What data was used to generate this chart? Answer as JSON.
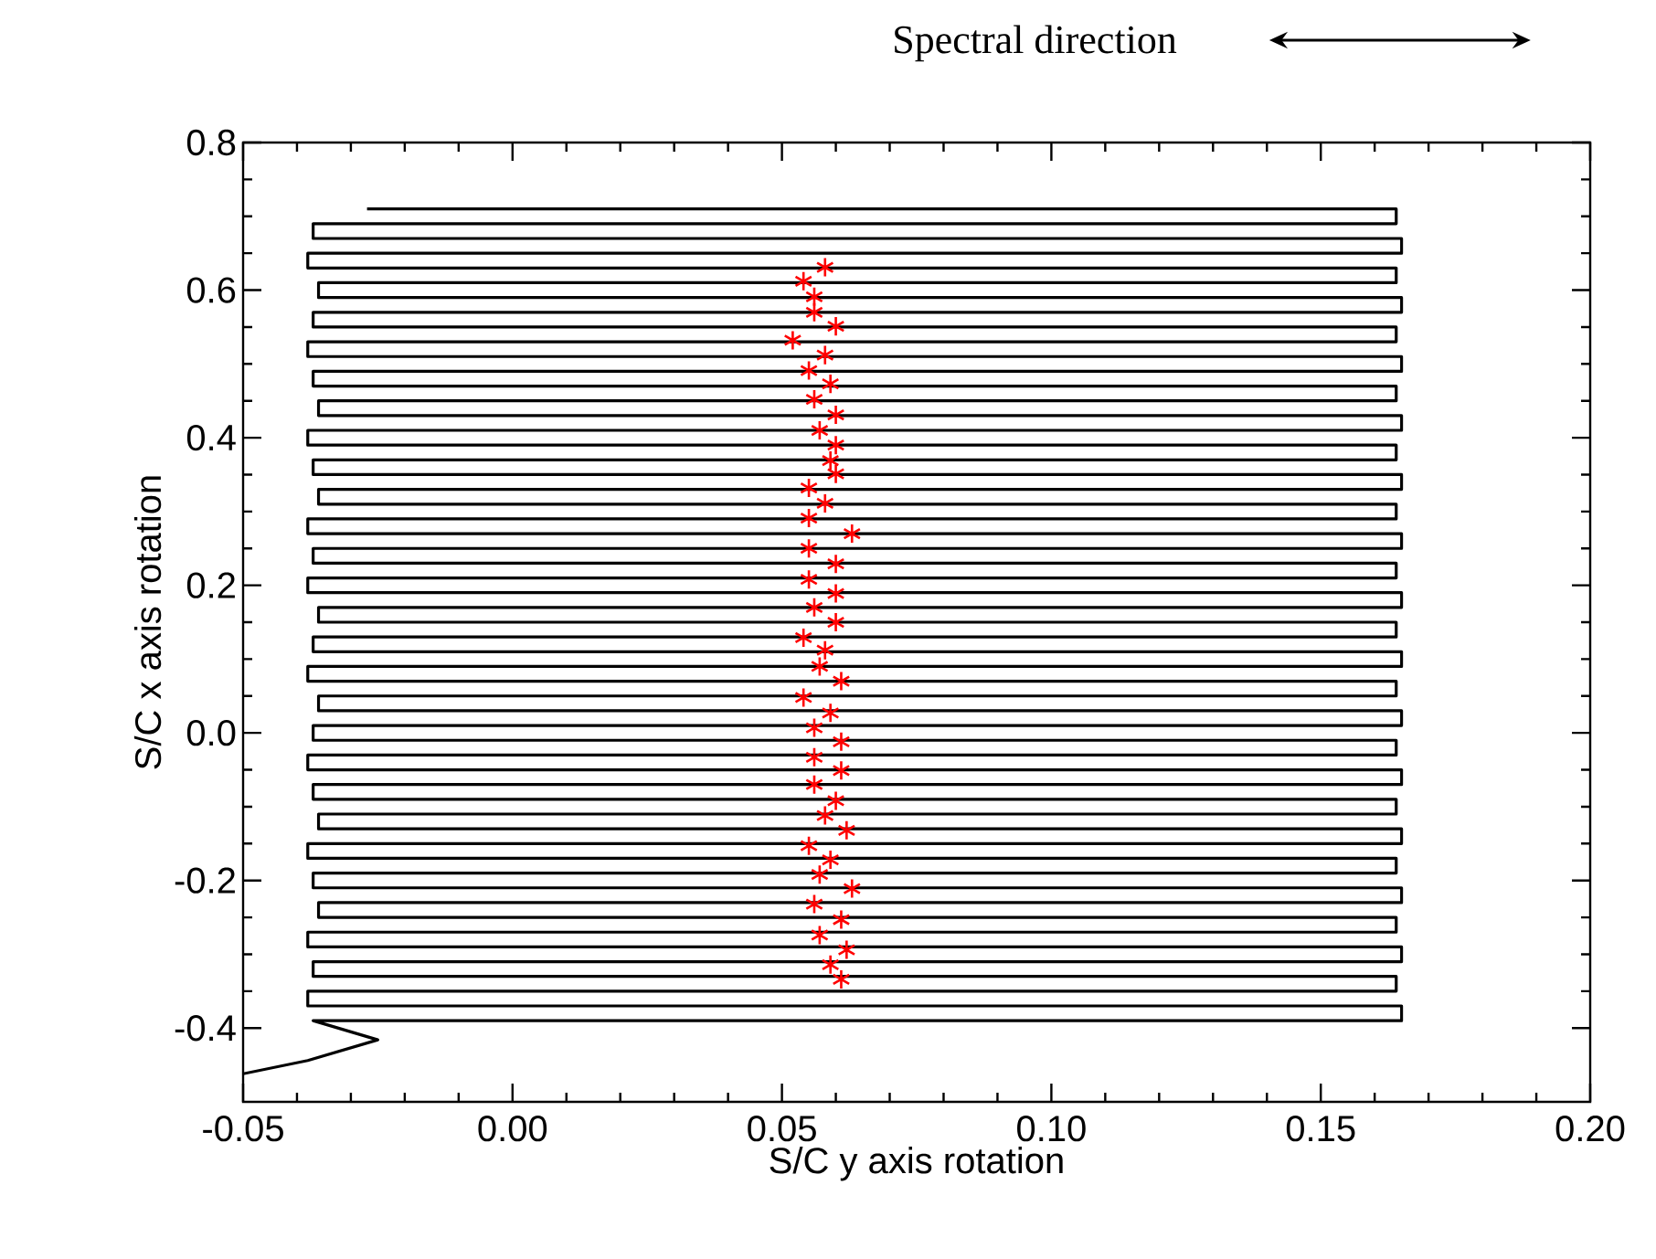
{
  "chart_data": {
    "type": "line",
    "xlabel": "S/C y axis rotation",
    "ylabel": "S/C x axis rotation",
    "annotations": [
      "Spectral direction"
    ],
    "xlim": [
      -0.05,
      0.2
    ],
    "ylim": [
      -0.5,
      0.8
    ],
    "xticks": [
      {
        "value": -0.05,
        "label": "-0.05"
      },
      {
        "value": 0,
        "label": "0.00"
      },
      {
        "value": 0.05,
        "label": "0.05"
      },
      {
        "value": 0.1,
        "label": "0.10"
      },
      {
        "value": 0.15,
        "label": "0.15"
      },
      {
        "value": 0.2,
        "label": "0.20"
      }
    ],
    "yticks": [
      {
        "value": -0.4,
        "label": "-0.4"
      },
      {
        "value": -0.2,
        "label": "-0.2"
      },
      {
        "value": 0,
        "label": "0.0"
      },
      {
        "value": 0.2,
        "label": "0.2"
      },
      {
        "value": 0.4,
        "label": "0.4"
      },
      {
        "value": 0.6,
        "label": "0.6"
      },
      {
        "value": 0.8,
        "label": "0.8"
      }
    ],
    "grid": false,
    "series": [
      {
        "color": "#000000",
        "marker": "none",
        "line_style": "solid",
        "x": [
          -0.05,
          -0.038,
          -0.025,
          -0.037,
          0.165,
          0.165,
          -0.038,
          -0.038,
          0.164,
          0.164,
          -0.037,
          -0.037,
          0.165,
          0.165,
          -0.038,
          -0.038,
          0.164,
          0.164,
          -0.036,
          -0.036,
          0.165,
          0.165,
          -0.037,
          -0.037,
          0.164,
          0.164,
          -0.038,
          -0.038,
          0.165,
          0.165,
          -0.036,
          -0.036,
          0.164,
          0.164,
          -0.037,
          -0.037,
          0.165,
          0.165,
          -0.038,
          -0.038,
          0.164,
          0.164,
          -0.037,
          -0.037,
          0.165,
          0.165,
          -0.036,
          -0.036,
          0.164,
          0.164,
          -0.038,
          -0.038,
          0.165,
          0.165,
          -0.037,
          -0.037,
          0.164,
          0.164,
          -0.036,
          -0.036,
          0.165,
          0.165,
          -0.038,
          -0.038,
          0.164,
          0.164,
          -0.037,
          -0.037,
          0.165,
          0.165,
          -0.038,
          -0.038,
          0.164,
          0.164,
          -0.036,
          -0.036,
          0.165,
          0.165,
          -0.037,
          -0.037,
          0.164,
          0.164,
          -0.038,
          -0.038,
          0.165,
          0.165,
          -0.036,
          -0.036,
          0.164,
          0.164,
          -0.037,
          -0.037,
          0.165,
          0.165,
          -0.038,
          -0.038,
          0.164,
          0.164,
          -0.037,
          -0.037,
          0.165,
          0.165,
          -0.036,
          -0.036,
          0.164,
          0.164,
          -0.038,
          -0.038,
          0.165,
          0.165,
          -0.037,
          -0.037,
          0.164,
          0.164,
          -0.027
        ],
        "values": [
          -0.462,
          -0.444,
          -0.416,
          -0.39,
          -0.39,
          -0.37,
          -0.37,
          -0.35,
          -0.35,
          -0.33,
          -0.33,
          -0.31,
          -0.31,
          -0.29,
          -0.29,
          -0.27,
          -0.27,
          -0.25,
          -0.25,
          -0.23,
          -0.23,
          -0.21,
          -0.21,
          -0.19,
          -0.19,
          -0.17,
          -0.17,
          -0.15,
          -0.15,
          -0.13,
          -0.13,
          -0.11,
          -0.11,
          -0.09,
          -0.09,
          -0.07,
          -0.07,
          -0.05,
          -0.05,
          -0.03,
          -0.03,
          -0.01,
          -0.01,
          0.01,
          0.01,
          0.03,
          0.03,
          0.05,
          0.05,
          0.07,
          0.07,
          0.09,
          0.09,
          0.11,
          0.11,
          0.13,
          0.13,
          0.15,
          0.15,
          0.17,
          0.17,
          0.19,
          0.19,
          0.21,
          0.21,
          0.23,
          0.23,
          0.25,
          0.25,
          0.27,
          0.27,
          0.29,
          0.29,
          0.31,
          0.31,
          0.33,
          0.33,
          0.35,
          0.35,
          0.37,
          0.37,
          0.39,
          0.39,
          0.41,
          0.41,
          0.43,
          0.43,
          0.45,
          0.45,
          0.47,
          0.47,
          0.49,
          0.49,
          0.51,
          0.51,
          0.53,
          0.53,
          0.55,
          0.55,
          0.57,
          0.57,
          0.59,
          0.59,
          0.61,
          0.61,
          0.63,
          0.63,
          0.65,
          0.65,
          0.67,
          0.67,
          0.69,
          0.69,
          0.71,
          0.71
        ]
      },
      {
        "type": "scatter",
        "color": "#ff0000",
        "marker": "cross",
        "x": [
          0.058,
          0.054,
          0.056,
          0.056,
          0.06,
          0.052,
          0.058,
          0.055,
          0.059,
          0.056,
          0.06,
          0.057,
          0.06,
          0.059,
          0.06,
          0.055,
          0.058,
          0.055,
          0.063,
          0.055,
          0.06,
          0.055,
          0.06,
          0.056,
          0.06,
          0.054,
          0.058,
          0.057,
          0.061,
          0.054,
          0.059,
          0.056,
          0.061,
          0.056,
          0.061,
          0.056,
          0.06,
          0.058,
          0.062,
          0.055,
          0.059,
          0.057,
          0.063,
          0.056,
          0.061,
          0.057,
          0.062,
          0.059,
          0.061
        ],
        "values": [
          0.631,
          0.612,
          0.591,
          0.57,
          0.551,
          0.532,
          0.512,
          0.491,
          0.473,
          0.452,
          0.431,
          0.41,
          0.39,
          0.369,
          0.351,
          0.332,
          0.311,
          0.291,
          0.27,
          0.25,
          0.229,
          0.208,
          0.189,
          0.17,
          0.15,
          0.129,
          0.112,
          0.09,
          0.07,
          0.048,
          0.027,
          0.007,
          -0.012,
          -0.033,
          -0.051,
          -0.07,
          -0.092,
          -0.112,
          -0.132,
          -0.153,
          -0.172,
          -0.192,
          -0.211,
          -0.232,
          -0.253,
          -0.274,
          -0.294,
          -0.314,
          -0.334
        ]
      }
    ]
  }
}
